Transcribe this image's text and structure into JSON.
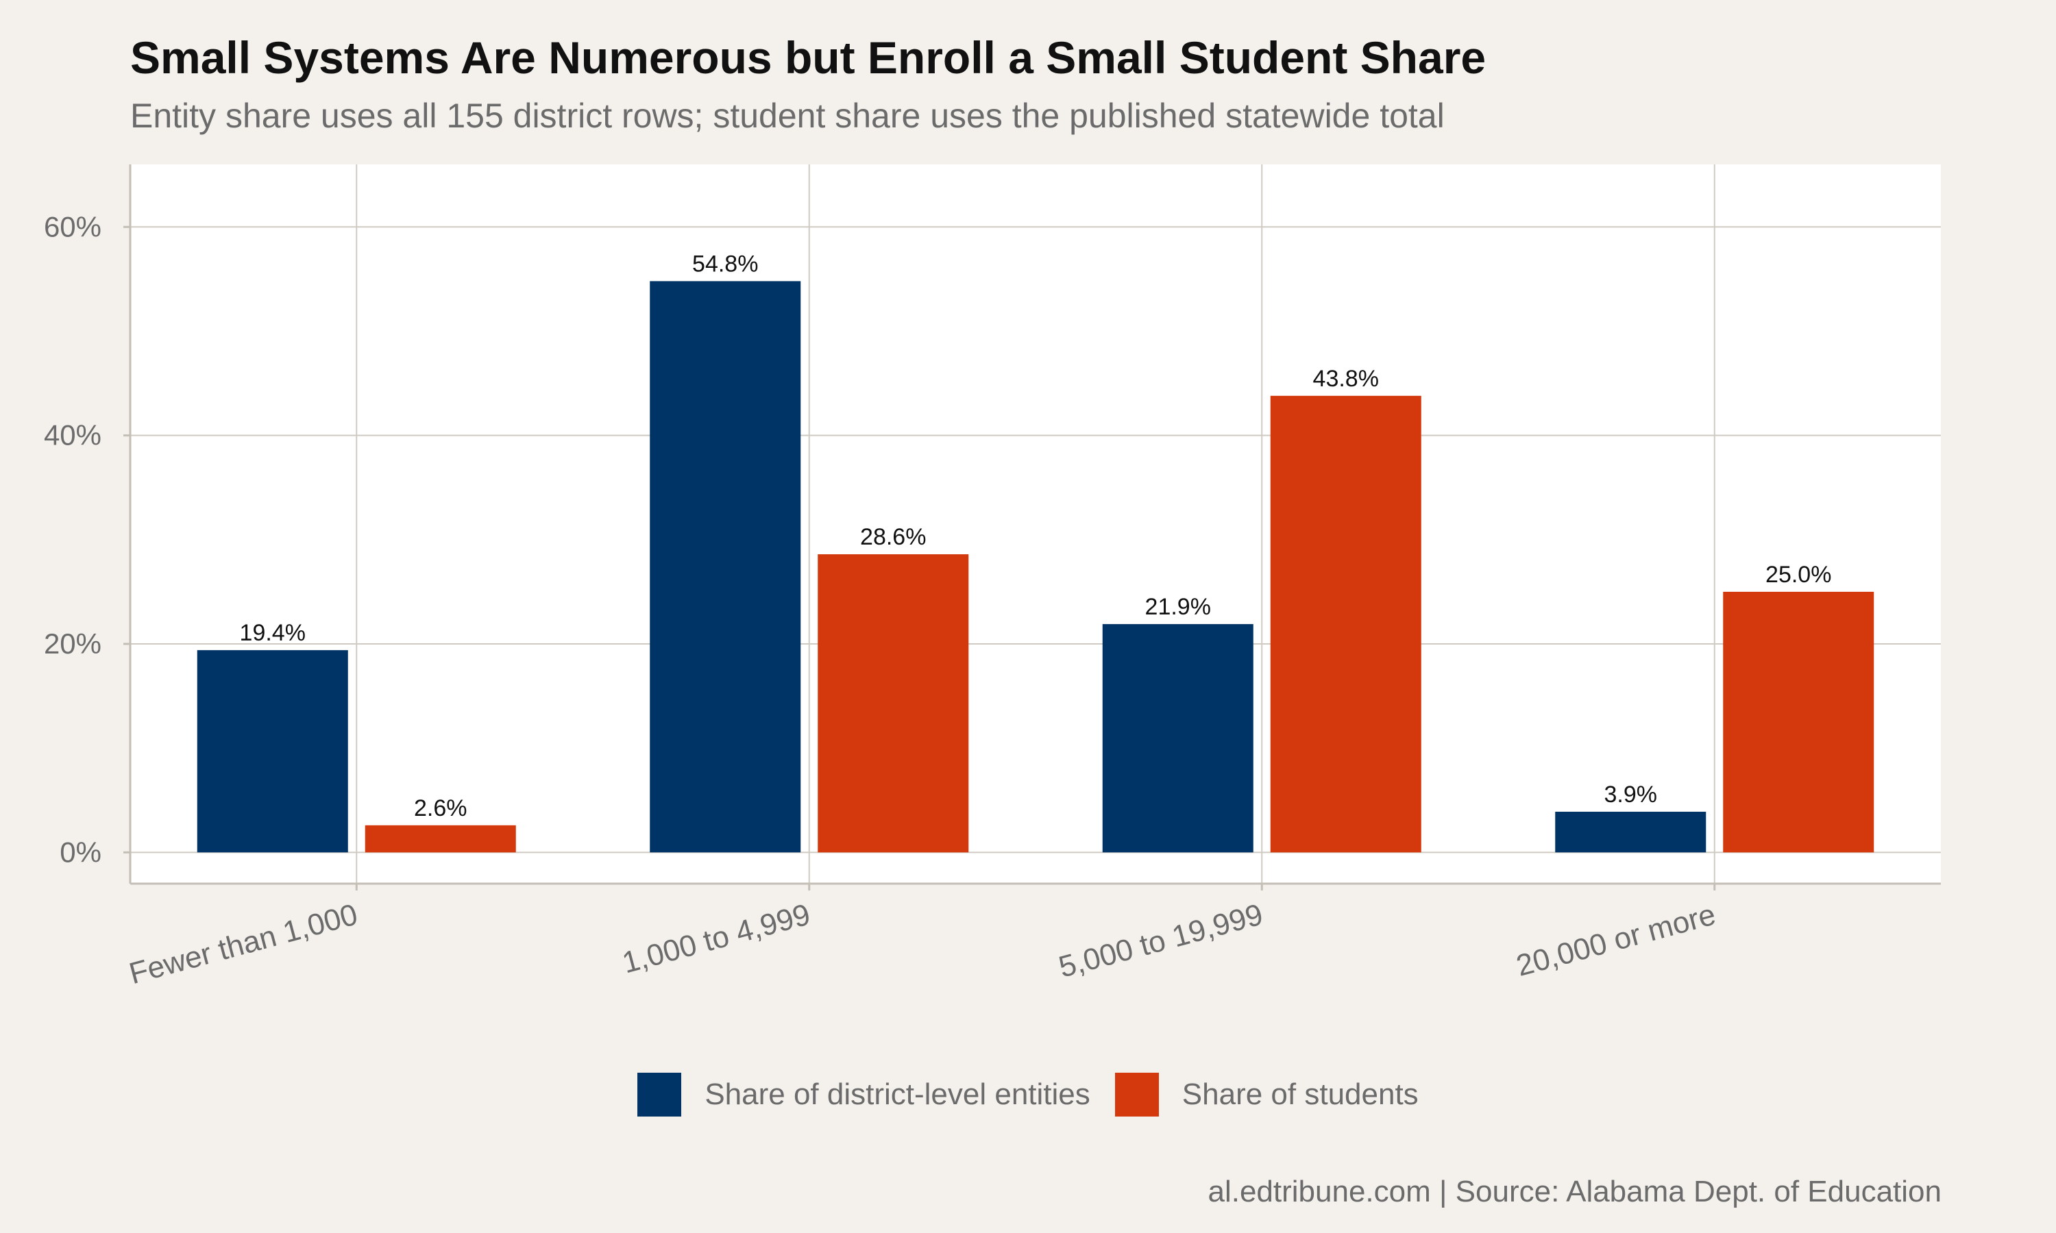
{
  "chart_data": {
    "type": "bar",
    "title": "Small Systems Are Numerous but Enroll a Small Student Share",
    "subtitle": "Entity share uses all 155 district rows; student share uses the published statewide total",
    "xlabel": "",
    "ylabel": "",
    "categories": [
      "Fewer than 1,000",
      "1,000 to 4,999",
      "5,000 to 19,999",
      "20,000 or more"
    ],
    "series": [
      {
        "name": "Share of district-level entities",
        "color": "#003366",
        "values": [
          19.4,
          54.8,
          21.9,
          3.9
        ],
        "labels": [
          "19.4%",
          "54.8%",
          "21.9%",
          "3.9%"
        ]
      },
      {
        "name": "Share of students",
        "color": "#d4380d",
        "values": [
          2.6,
          28.6,
          43.8,
          25.0
        ],
        "labels": [
          "2.6%",
          "28.6%",
          "43.8%",
          "25.0%"
        ]
      }
    ],
    "y_ticks": [
      0,
      20,
      40,
      60
    ],
    "y_tick_labels": [
      "0%",
      "20%",
      "40%",
      "60%"
    ],
    "ylim": [
      -3,
      66
    ],
    "grid": true,
    "legend_position": "bottom",
    "caption": "al.edtribune.com | Source: Alabama Dept. of Education"
  }
}
